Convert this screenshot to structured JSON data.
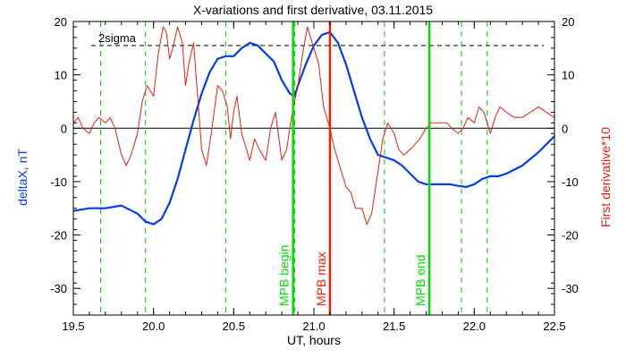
{
  "chart_data": {
    "type": "line",
    "title": "X-variations and first derivative, 03.11.2015",
    "xlabel": "UT, hours",
    "ylabel_left": "deltaX, nT",
    "ylabel_right": "First derivative*10",
    "xlim": [
      19.5,
      22.5
    ],
    "ylim_left": [
      -35,
      20
    ],
    "ylim_right": [
      -35,
      20
    ],
    "x_ticks": [
      "19.5",
      "20.0",
      "20.5",
      "21.0",
      "21.5",
      "22.0",
      "22.5"
    ],
    "y_ticks_left": [
      "20",
      "10",
      "0",
      "-10",
      "-20",
      "-30"
    ],
    "y_ticks_right": [
      "20",
      "10",
      "0",
      "-10",
      "-20",
      "-30"
    ],
    "sigma_label": "2sigma",
    "sigma_level": 15.5,
    "zero_level": 0,
    "colors": {
      "deltaX": "#0040e0",
      "derivative": "#e02010",
      "mpb_lines": "#00dd00",
      "mpb_max": "#ee2200",
      "dashed_green": "#00cc00"
    },
    "dashed_green_x": [
      19.67,
      19.95,
      20.45,
      20.88,
      21.44,
      21.92,
      22.08
    ],
    "markers": [
      {
        "label": "MPB begin",
        "x": 20.87,
        "color": "#00dd00"
      },
      {
        "label": "MPB max",
        "x": 21.1,
        "color": "#ee2200"
      },
      {
        "label": "MPB end",
        "x": 21.72,
        "color": "#00dd00"
      }
    ],
    "series": [
      {
        "key": "deltaX",
        "axis": "left",
        "x": [
          19.5,
          19.6,
          19.7,
          19.8,
          19.9,
          19.95,
          20.0,
          20.05,
          20.1,
          20.15,
          20.2,
          20.25,
          20.3,
          20.35,
          20.4,
          20.45,
          20.5,
          20.55,
          20.6,
          20.65,
          20.7,
          20.75,
          20.8,
          20.85,
          20.88,
          20.9,
          20.95,
          21.0,
          21.05,
          21.1,
          21.15,
          21.2,
          21.25,
          21.3,
          21.35,
          21.4,
          21.45,
          21.5,
          21.55,
          21.6,
          21.65,
          21.7,
          21.75,
          21.8,
          21.85,
          21.9,
          21.95,
          22.0,
          22.05,
          22.1,
          22.15,
          22.2,
          22.3,
          22.4,
          22.5
        ],
        "values": [
          -15.5,
          -15,
          -15,
          -14.5,
          -16,
          -17.5,
          -18,
          -17,
          -14,
          -9.5,
          -4,
          1.5,
          6.5,
          10.5,
          13,
          13.5,
          13.5,
          15,
          16,
          15.5,
          14,
          12.5,
          9,
          6.5,
          6,
          8,
          12,
          15.5,
          17.5,
          18,
          16,
          12,
          7,
          2,
          -2,
          -5,
          -5.5,
          -6,
          -7,
          -8.5,
          -10,
          -10.5,
          -10.5,
          -10.5,
          -10.5,
          -10.8,
          -11,
          -10.5,
          -9.5,
          -9,
          -9,
          -8.5,
          -7,
          -4.5,
          -1.5
        ]
      },
      {
        "key": "derivative",
        "axis": "right",
        "x": [
          19.5,
          19.53,
          19.56,
          19.6,
          19.63,
          19.66,
          19.7,
          19.73,
          19.76,
          19.8,
          19.83,
          19.86,
          19.9,
          19.93,
          19.96,
          20.0,
          20.03,
          20.06,
          20.08,
          20.1,
          20.12,
          20.15,
          20.18,
          20.2,
          20.22,
          20.25,
          20.28,
          20.3,
          20.33,
          20.36,
          20.4,
          20.43,
          20.46,
          20.48,
          20.5,
          20.52,
          20.55,
          20.58,
          20.6,
          20.63,
          20.66,
          20.7,
          20.73,
          20.76,
          20.8,
          20.83,
          20.86,
          20.9,
          20.93,
          20.96,
          21.0,
          21.03,
          21.06,
          21.1,
          21.13,
          21.16,
          21.2,
          21.23,
          21.26,
          21.3,
          21.33,
          21.36,
          21.4,
          21.43,
          21.46,
          21.5,
          21.53,
          21.56,
          21.6,
          21.63,
          21.66,
          21.7,
          21.73,
          21.76,
          21.8,
          21.83,
          21.86,
          21.9,
          21.93,
          21.96,
          22.0,
          22.03,
          22.06,
          22.1,
          22.13,
          22.16,
          22.2,
          22.25,
          22.3,
          22.35,
          22.4,
          22.45,
          22.5
        ],
        "values": [
          1,
          2,
          0,
          -1,
          1,
          2,
          1,
          2,
          0,
          -5,
          -7,
          -5,
          -1,
          5,
          8,
          6,
          14,
          19,
          18,
          13,
          15,
          19,
          16,
          8,
          12,
          16,
          4,
          -4,
          -7,
          -1,
          8,
          7,
          4,
          -2,
          3,
          6,
          -1,
          -4,
          -6,
          -2,
          -4,
          -6,
          0,
          3,
          -6,
          -4,
          2,
          8,
          14,
          19,
          15,
          12,
          4,
          0,
          -4,
          -7,
          -11,
          -12,
          -15,
          -15,
          -18,
          -16,
          -8,
          -2,
          1,
          -1,
          -4,
          -5,
          -4,
          -3,
          -2,
          0,
          1,
          1,
          1,
          1,
          0,
          -1,
          0,
          2,
          1,
          4,
          3,
          -1,
          2,
          4,
          3,
          2,
          2,
          3,
          4,
          3,
          2
        ]
      }
    ]
  }
}
